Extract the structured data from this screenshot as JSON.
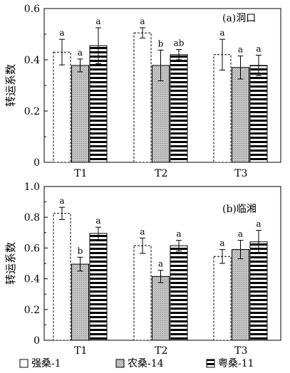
{
  "chart_data": [
    {
      "type": "bar",
      "panel_label": "(a)洞口",
      "ylabel": "转运系数",
      "ylim": [
        0,
        0.6
      ],
      "yticks": [
        "0",
        "0.2",
        "0.4",
        "0.6"
      ],
      "categories": [
        "T1",
        "T2",
        "T3"
      ],
      "series": [
        {
          "name": "强桑-1",
          "values": [
            0.43,
            0.505,
            0.42
          ],
          "errors": [
            0.05,
            0.02,
            0.06
          ],
          "letters": [
            "a",
            "a",
            "a"
          ]
        },
        {
          "name": "农桑-14",
          "values": [
            0.378,
            0.378,
            0.37
          ],
          "errors": [
            0.025,
            0.06,
            0.045
          ],
          "letters": [
            "a",
            "b",
            "a"
          ]
        },
        {
          "name": "粤桑-11",
          "values": [
            0.455,
            0.42,
            0.378
          ],
          "errors": [
            0.07,
            0.02,
            0.04
          ],
          "letters": [
            "a",
            "ab",
            "a"
          ]
        }
      ]
    },
    {
      "type": "bar",
      "panel_label": "(b)临湘",
      "ylabel": "转运系数",
      "ylim": [
        0,
        1.0
      ],
      "yticks": [
        "0",
        "0.2",
        "0.4",
        "0.6",
        "0.8",
        "1.0"
      ],
      "categories": [
        "T1",
        "T2",
        "T3"
      ],
      "series": [
        {
          "name": "强桑-1",
          "values": [
            0.825,
            0.615,
            0.545
          ],
          "errors": [
            0.04,
            0.05,
            0.045
          ],
          "letters": [
            "a",
            "a",
            "a"
          ]
        },
        {
          "name": "农桑-14",
          "values": [
            0.495,
            0.415,
            0.59
          ],
          "errors": [
            0.045,
            0.04,
            0.06
          ],
          "letters": [
            "b",
            "a",
            "a"
          ]
        },
        {
          "name": "粤桑-11",
          "values": [
            0.695,
            0.615,
            0.64
          ],
          "errors": [
            0.04,
            0.035,
            0.075
          ],
          "letters": [
            "a",
            "a",
            "a"
          ]
        }
      ]
    }
  ],
  "legend": [
    {
      "label": "强桑-1",
      "pattern": "white"
    },
    {
      "label": "农桑-14",
      "pattern": "gray"
    },
    {
      "label": "粤桑-11",
      "pattern": "stripes"
    }
  ]
}
